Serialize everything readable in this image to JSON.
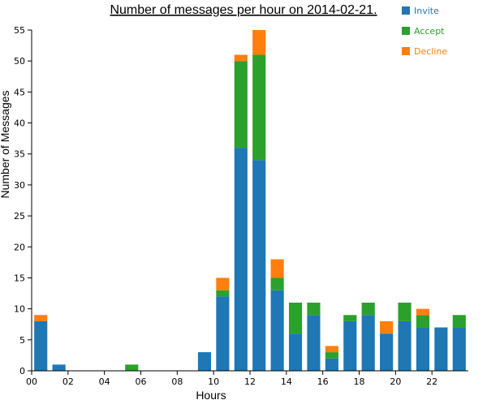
{
  "chart_data": {
    "type": "bar",
    "stacked": true,
    "title": "Number of messages per hour on 2014-02-21.",
    "xlabel": "Hours",
    "ylabel": "Number of Messages",
    "ylim": [
      0,
      55
    ],
    "yticks": [
      0,
      5,
      10,
      15,
      20,
      25,
      30,
      35,
      40,
      45,
      50,
      55
    ],
    "xticks": [
      "00",
      "02",
      "04",
      "06",
      "08",
      "10",
      "12",
      "14",
      "16",
      "18",
      "20",
      "22"
    ],
    "categories": [
      "00",
      "01",
      "02",
      "03",
      "04",
      "05",
      "06",
      "07",
      "08",
      "09",
      "10",
      "11",
      "12",
      "13",
      "14",
      "15",
      "16",
      "17",
      "18",
      "19",
      "20",
      "21",
      "22",
      "23"
    ],
    "legend_position": "top-right",
    "series": [
      {
        "name": "Invite",
        "color": "#1f77b4",
        "values": [
          8,
          1,
          0,
          0,
          0,
          0,
          0,
          0,
          0,
          3,
          12,
          36,
          34,
          13,
          6,
          9,
          2,
          8,
          9,
          6,
          8,
          7,
          7,
          7
        ]
      },
      {
        "name": "Accept",
        "color": "#2ca02c",
        "values": [
          0,
          0,
          0,
          0,
          0,
          1,
          0,
          0,
          0,
          0,
          1,
          14,
          17,
          2,
          5,
          2,
          1,
          1,
          2,
          0,
          3,
          2,
          0,
          2
        ]
      },
      {
        "name": "Decline",
        "color": "#ff7f0e",
        "values": [
          1,
          0,
          0,
          0,
          0,
          0,
          0,
          0,
          0,
          0,
          2,
          1,
          4,
          3,
          0,
          0,
          1,
          0,
          0,
          2,
          0,
          1,
          0,
          0
        ]
      }
    ]
  }
}
